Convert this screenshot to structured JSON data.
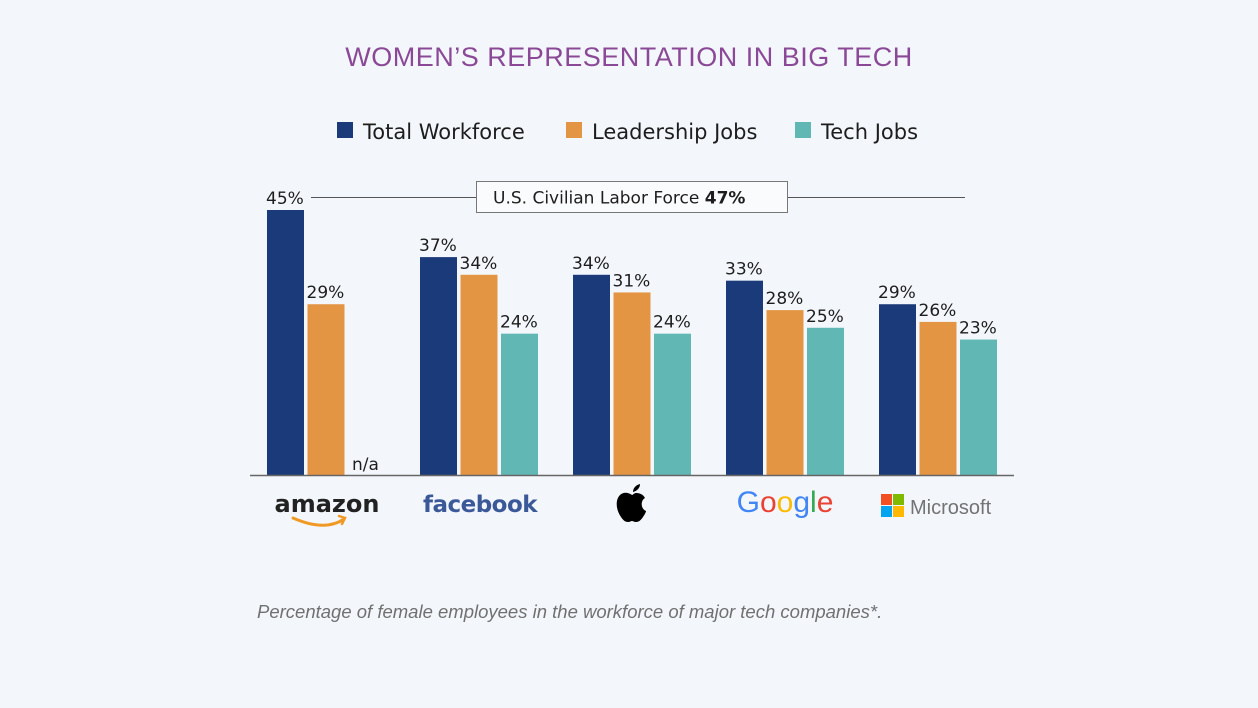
{
  "chart_data": {
    "type": "bar",
    "title": "WOMEN’S REPRESENTATION IN BIG TECH",
    "categories": [
      "amazon",
      "facebook",
      "Apple",
      "Google",
      "Microsoft"
    ],
    "series": [
      {
        "name": "Total Workforce",
        "color": "#1b3a7a",
        "values": [
          45,
          37,
          34,
          33,
          29
        ]
      },
      {
        "name": "Leadership Jobs",
        "color": "#e39543",
        "values": [
          29,
          34,
          31,
          28,
          26
        ]
      },
      {
        "name": "Tech Jobs",
        "color": "#60b7b3",
        "values": [
          null,
          24,
          24,
          25,
          23
        ]
      }
    ],
    "missing_label": "n/a",
    "value_suffix": "%",
    "reference_line": {
      "label": "U.S. Civilian Labor Force",
      "value": 47,
      "value_label": "47%"
    },
    "xlabel": "",
    "ylabel": "",
    "ylim": [
      0,
      47
    ],
    "grid": false,
    "legend_position": "top-center",
    "caption": "Percentage of female employees in the workforce of major tech companies*."
  },
  "logos": {
    "amazon": "amazon",
    "facebook": "facebook",
    "google": [
      "G",
      "o",
      "o",
      "g",
      "l",
      "e"
    ],
    "google_colors": [
      "#4285f4",
      "#ea4335",
      "#fbbc05",
      "#4285f4",
      "#34a853",
      "#ea4335"
    ],
    "microsoft": "Microsoft",
    "microsoft_colors": [
      "#f25022",
      "#7fba00",
      "#00a4ef",
      "#ffb900"
    ]
  }
}
